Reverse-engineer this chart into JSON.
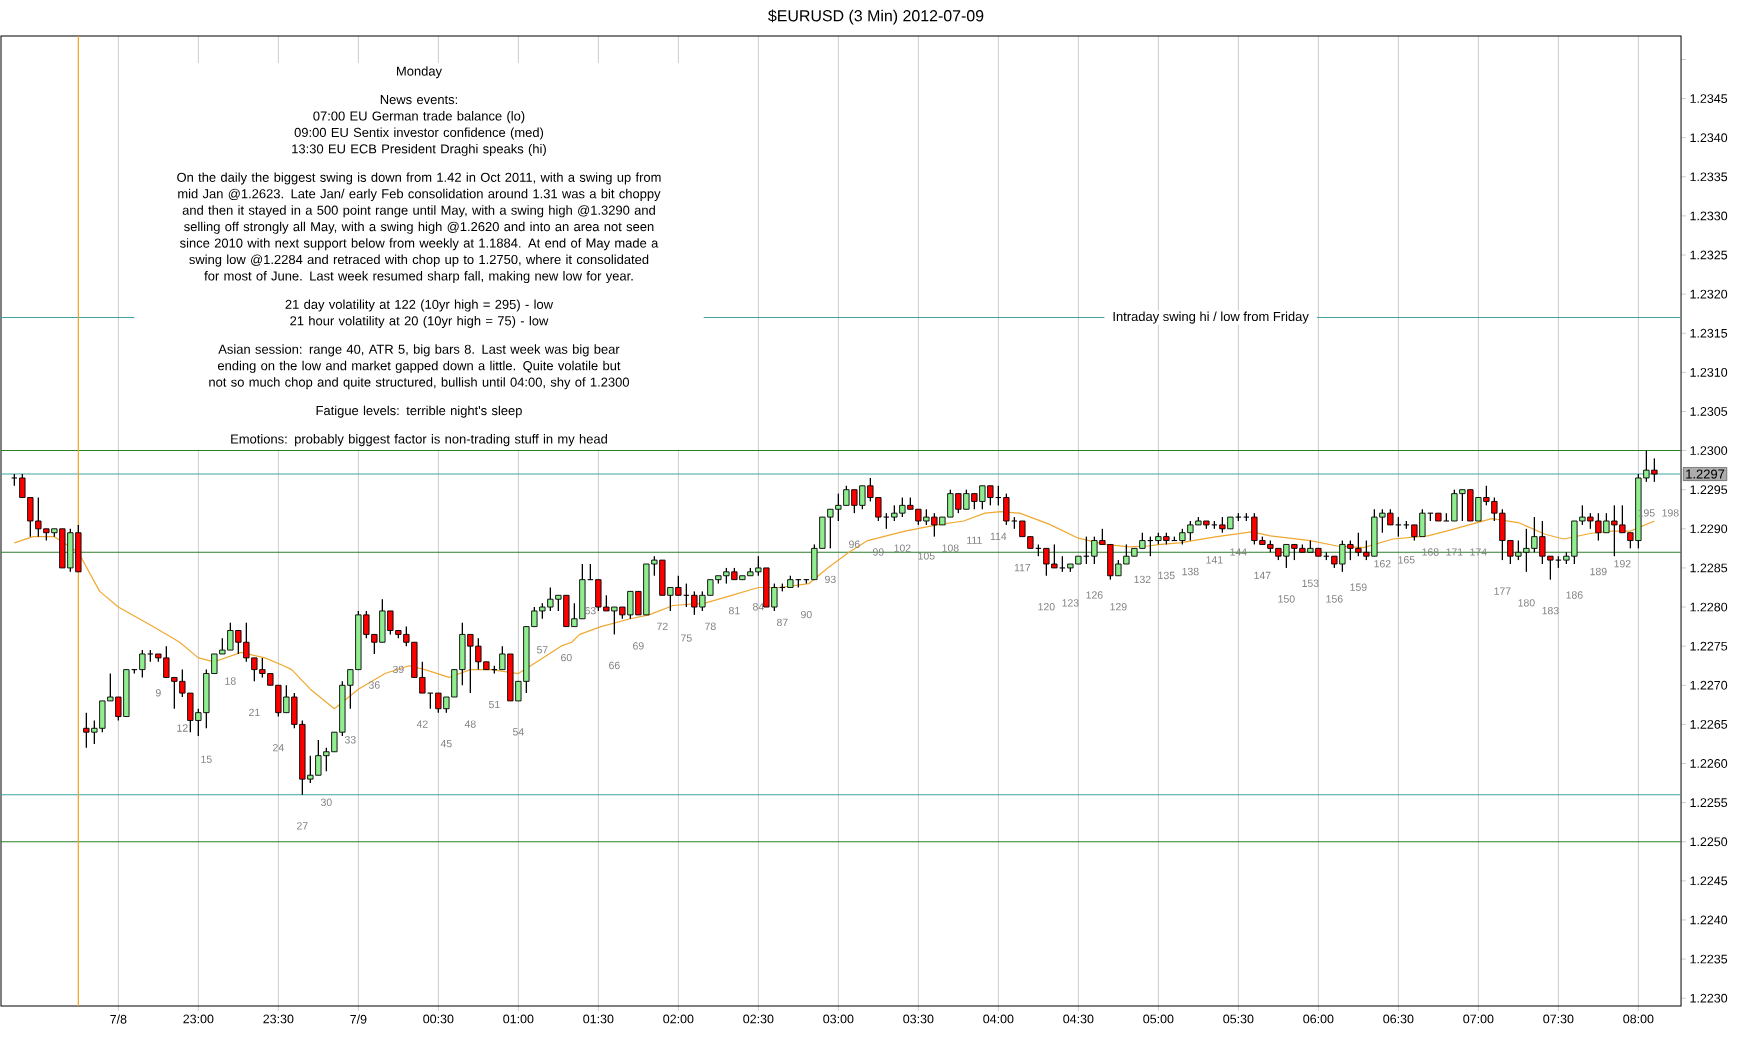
{
  "chart_data": {
    "type": "candlestick",
    "title": "$EURUSD (3 Min)  2012-07-09",
    "x": [
      "2012-07-08T21:51",
      "2012-07-08T21:54",
      "2012-07-08T21:57",
      "2012-07-08T22:00",
      "2012-07-08T22:03",
      "2012-07-08T22:06",
      "2012-07-08T22:09",
      "2012-07-08T22:12",
      "2012-07-08T22:15",
      "2012-07-08T22:18",
      "2012-07-08T22:21",
      "2012-07-08T22:24",
      "2012-07-08T22:27",
      "2012-07-08T22:30",
      "2012-07-08T22:33",
      "2012-07-08T22:36",
      "2012-07-08T22:39",
      "2012-07-08T22:42",
      "2012-07-08T22:45",
      "2012-07-08T22:48",
      "2012-07-08T22:51",
      "2012-07-08T22:54",
      "2012-07-08T22:57",
      "2012-07-08T23:00",
      "2012-07-08T23:03",
      "2012-07-08T23:06",
      "2012-07-08T23:09",
      "2012-07-08T23:12",
      "2012-07-08T23:15",
      "2012-07-08T23:18",
      "2012-07-08T23:21",
      "2012-07-08T23:24",
      "2012-07-08T23:27",
      "2012-07-08T23:30",
      "2012-07-08T23:33",
      "2012-07-08T23:36",
      "2012-07-08T23:39",
      "2012-07-08T23:42",
      "2012-07-08T23:45",
      "2012-07-08T23:48",
      "2012-07-08T23:51",
      "2012-07-08T23:54",
      "2012-07-08T23:57",
      "2012-07-09T00:00",
      "2012-07-09T00:03",
      "2012-07-09T00:06",
      "2012-07-09T00:09",
      "2012-07-09T00:12",
      "2012-07-09T00:15",
      "2012-07-09T00:18",
      "2012-07-09T00:21",
      "2012-07-09T00:24",
      "2012-07-09T00:27",
      "2012-07-09T00:30",
      "2012-07-09T00:33",
      "2012-07-09T00:36",
      "2012-07-09T00:39",
      "2012-07-09T00:42",
      "2012-07-09T00:45",
      "2012-07-09T00:48",
      "2012-07-09T00:51",
      "2012-07-09T00:54",
      "2012-07-09T00:57",
      "2012-07-09T01:00",
      "2012-07-09T01:03",
      "2012-07-09T01:06",
      "2012-07-09T01:09",
      "2012-07-09T01:12",
      "2012-07-09T01:15",
      "2012-07-09T01:18",
      "2012-07-09T01:21",
      "2012-07-09T01:24",
      "2012-07-09T01:27",
      "2012-07-09T01:30",
      "2012-07-09T01:33",
      "2012-07-09T01:36",
      "2012-07-09T01:39",
      "2012-07-09T01:42",
      "2012-07-09T01:45",
      "2012-07-09T01:48",
      "2012-07-09T01:51",
      "2012-07-09T01:54",
      "2012-07-09T01:57",
      "2012-07-09T02:00",
      "2012-07-09T02:03",
      "2012-07-09T02:06",
      "2012-07-09T02:09",
      "2012-07-09T02:12",
      "2012-07-09T02:15",
      "2012-07-09T02:18",
      "2012-07-09T02:21",
      "2012-07-09T02:24",
      "2012-07-09T02:27",
      "2012-07-09T02:30",
      "2012-07-09T02:33",
      "2012-07-09T02:36",
      "2012-07-09T02:39",
      "2012-07-09T02:42",
      "2012-07-09T02:45",
      "2012-07-09T02:48",
      "2012-07-09T02:51",
      "2012-07-09T02:54",
      "2012-07-09T02:57",
      "2012-07-09T03:00",
      "2012-07-09T03:03",
      "2012-07-09T03:06",
      "2012-07-09T03:09",
      "2012-07-09T03:12",
      "2012-07-09T03:15",
      "2012-07-09T03:18",
      "2012-07-09T03:21",
      "2012-07-09T03:24",
      "2012-07-09T03:27",
      "2012-07-09T03:30",
      "2012-07-09T03:33",
      "2012-07-09T03:36",
      "2012-07-09T03:39",
      "2012-07-09T03:42",
      "2012-07-09T03:45",
      "2012-07-09T03:48",
      "2012-07-09T03:51",
      "2012-07-09T03:54",
      "2012-07-09T03:57",
      "2012-07-09T04:00",
      "2012-07-09T04:03",
      "2012-07-09T04:06",
      "2012-07-09T04:09",
      "2012-07-09T04:12",
      "2012-07-09T04:15",
      "2012-07-09T04:18",
      "2012-07-09T04:21",
      "2012-07-09T04:24",
      "2012-07-09T04:27",
      "2012-07-09T04:30",
      "2012-07-09T04:33",
      "2012-07-09T04:36",
      "2012-07-09T04:39",
      "2012-07-09T04:42",
      "2012-07-09T04:45",
      "2012-07-09T04:48",
      "2012-07-09T04:51",
      "2012-07-09T04:54",
      "2012-07-09T04:57",
      "2012-07-09T05:00",
      "2012-07-09T05:03",
      "2012-07-09T05:06",
      "2012-07-09T05:09",
      "2012-07-09T05:12",
      "2012-07-09T05:15",
      "2012-07-09T05:18",
      "2012-07-09T05:21",
      "2012-07-09T05:24",
      "2012-07-09T05:27",
      "2012-07-09T05:30",
      "2012-07-09T05:33",
      "2012-07-09T05:36",
      "2012-07-09T05:39",
      "2012-07-09T05:42",
      "2012-07-09T05:45",
      "2012-07-09T05:48",
      "2012-07-09T05:51",
      "2012-07-09T05:54",
      "2012-07-09T05:57",
      "2012-07-09T06:00",
      "2012-07-09T06:03",
      "2012-07-09T06:06",
      "2012-07-09T06:09",
      "2012-07-09T06:12",
      "2012-07-09T06:15",
      "2012-07-09T06:18",
      "2012-07-09T06:21",
      "2012-07-09T06:24",
      "2012-07-09T06:27",
      "2012-07-09T06:30",
      "2012-07-09T06:33",
      "2012-07-09T06:36",
      "2012-07-09T06:39",
      "2012-07-09T06:42",
      "2012-07-09T06:45",
      "2012-07-09T06:48",
      "2012-07-09T06:51",
      "2012-07-09T06:54",
      "2012-07-09T06:57",
      "2012-07-09T07:00",
      "2012-07-09T07:03",
      "2012-07-09T07:06",
      "2012-07-09T07:09",
      "2012-07-09T07:12",
      "2012-07-09T07:15",
      "2012-07-09T07:18",
      "2012-07-09T07:21",
      "2012-07-09T07:24",
      "2012-07-09T07:27",
      "2012-07-09T07:30",
      "2012-07-09T07:33",
      "2012-07-09T07:36",
      "2012-07-09T07:39",
      "2012-07-09T07:42",
      "2012-07-09T07:45",
      "2012-07-09T07:48",
      "2012-07-09T07:51",
      "2012-07-09T07:54",
      "2012-07-09T07:57",
      "2012-07-09T08:00",
      "2012-07-09T08:03",
      "2012-07-09T08:06"
    ],
    "ohlc": [
      [
        1.22965,
        1.2297,
        1.22955,
        1.22965
      ],
      [
        1.22965,
        1.2297,
        1.2294,
        1.2294
      ],
      [
        1.2294,
        1.2294,
        1.2289,
        1.2291
      ],
      [
        1.2291,
        1.2294,
        1.2289,
        1.229
      ],
      [
        1.229,
        1.229,
        1.22885,
        1.22895
      ],
      [
        1.22895,
        1.229,
        1.2289,
        1.229
      ],
      [
        1.229,
        1.229,
        1.2285,
        1.2285
      ],
      [
        1.2285,
        1.229,
        1.22845,
        1.22895
      ],
      [
        1.22895,
        1.22905,
        1.22845,
        1.22845
      ],
      [
        1.22645,
        1.22665,
        1.2262,
        1.2264
      ],
      [
        1.2264,
        1.22655,
        1.22625,
        1.22645
      ],
      [
        1.22645,
        1.2268,
        1.2264,
        1.2268
      ],
      [
        1.2268,
        1.22715,
        1.2268,
        1.22685
      ],
      [
        1.22685,
        1.22685,
        1.22655,
        1.2266
      ],
      [
        1.2266,
        1.2272,
        1.2266,
        1.2272
      ],
      [
        1.2272,
        1.2272,
        1.22715,
        1.2272
      ],
      [
        1.2272,
        1.22745,
        1.2271,
        1.2274
      ],
      [
        1.2274,
        1.22745,
        1.2273,
        1.2274
      ],
      [
        1.2274,
        1.2274,
        1.2273,
        1.22735
      ],
      [
        1.22735,
        1.2275,
        1.2271,
        1.2271
      ],
      [
        1.2271,
        1.2271,
        1.2267,
        1.22705
      ],
      [
        1.22705,
        1.2272,
        1.22685,
        1.2269
      ],
      [
        1.2269,
        1.2269,
        1.2264,
        1.22655
      ],
      [
        1.22655,
        1.2267,
        1.22635,
        1.22665
      ],
      [
        1.22665,
        1.2272,
        1.22645,
        1.22715
      ],
      [
        1.22715,
        1.2274,
        1.22715,
        1.2274
      ],
      [
        1.2274,
        1.2276,
        1.2274,
        1.22745
      ],
      [
        1.22745,
        1.2278,
        1.22745,
        1.2277
      ],
      [
        1.2277,
        1.2277,
        1.2274,
        1.22755
      ],
      [
        1.22755,
        1.2278,
        1.2273,
        1.22735
      ],
      [
        1.22735,
        1.22735,
        1.22705,
        1.2272
      ],
      [
        1.2272,
        1.22735,
        1.2271,
        1.22715
      ],
      [
        1.22715,
        1.22715,
        1.227,
        1.227
      ],
      [
        1.227,
        1.227,
        1.2266,
        1.22665
      ],
      [
        1.22665,
        1.227,
        1.22665,
        1.22685
      ],
      [
        1.22685,
        1.2269,
        1.22645,
        1.2265
      ],
      [
        1.2265,
        1.22655,
        1.2256,
        1.2258
      ],
      [
        1.2258,
        1.2261,
        1.22575,
        1.22585
      ],
      [
        1.22585,
        1.2263,
        1.22585,
        1.2261
      ],
      [
        1.2261,
        1.2262,
        1.2259,
        1.22615
      ],
      [
        1.22615,
        1.2264,
        1.22615,
        1.2264
      ],
      [
        1.2264,
        1.22705,
        1.22635,
        1.227
      ],
      [
        1.227,
        1.2272,
        1.2267,
        1.2272
      ],
      [
        1.2272,
        1.22795,
        1.2272,
        1.2279
      ],
      [
        1.2279,
        1.22795,
        1.2276,
        1.22765
      ],
      [
        1.22765,
        1.22765,
        1.2274,
        1.22755
      ],
      [
        1.22755,
        1.2281,
        1.22755,
        1.22795
      ],
      [
        1.22795,
        1.22795,
        1.22765,
        1.2277
      ],
      [
        1.2277,
        1.2277,
        1.2276,
        1.22765
      ],
      [
        1.22765,
        1.22775,
        1.2275,
        1.22755
      ],
      [
        1.22755,
        1.22755,
        1.2271,
        1.2271
      ],
      [
        1.2271,
        1.2273,
        1.2269,
        1.2269
      ],
      [
        1.2269,
        1.2269,
        1.2267,
        1.2269
      ],
      [
        1.2269,
        1.2269,
        1.22665,
        1.2267
      ],
      [
        1.2267,
        1.22685,
        1.22665,
        1.22685
      ],
      [
        1.22685,
        1.2272,
        1.22685,
        1.2272
      ],
      [
        1.2272,
        1.2278,
        1.227,
        1.22765
      ],
      [
        1.22765,
        1.22765,
        1.2269,
        1.2275
      ],
      [
        1.2275,
        1.2276,
        1.2272,
        1.2273
      ],
      [
        1.2273,
        1.2273,
        1.2272,
        1.2272
      ],
      [
        1.2272,
        1.22725,
        1.22715,
        1.2272
      ],
      [
        1.2272,
        1.2275,
        1.2272,
        1.2274
      ],
      [
        1.2274,
        1.2274,
        1.2268,
        1.2268
      ],
      [
        1.2268,
        1.22705,
        1.2268,
        1.22705
      ],
      [
        1.22705,
        1.22775,
        1.2269,
        1.22775
      ],
      [
        1.22775,
        1.228,
        1.22775,
        1.22795
      ],
      [
        1.22795,
        1.22805,
        1.22785,
        1.228
      ],
      [
        1.228,
        1.22825,
        1.22795,
        1.2281
      ],
      [
        1.2281,
        1.22815,
        1.22795,
        1.22815
      ],
      [
        1.22815,
        1.22815,
        1.22775,
        1.22775
      ],
      [
        1.22775,
        1.22805,
        1.22775,
        1.22785
      ],
      [
        1.22785,
        1.22855,
        1.22785,
        1.22835
      ],
      [
        1.22835,
        1.22855,
        1.22835,
        1.22835
      ],
      [
        1.22835,
        1.22835,
        1.22795,
        1.228
      ],
      [
        1.228,
        1.22815,
        1.22795,
        1.22795
      ],
      [
        1.22795,
        1.228,
        1.22765,
        1.228
      ],
      [
        1.228,
        1.228,
        1.22785,
        1.2279
      ],
      [
        1.2279,
        1.2282,
        1.22785,
        1.2282
      ],
      [
        1.2282,
        1.2282,
        1.2279,
        1.2279
      ],
      [
        1.2279,
        1.22855,
        1.2279,
        1.22855
      ],
      [
        1.22855,
        1.22865,
        1.2284,
        1.2286
      ],
      [
        1.2286,
        1.2286,
        1.22815,
        1.22815
      ],
      [
        1.22815,
        1.22825,
        1.22795,
        1.22825
      ],
      [
        1.22825,
        1.2284,
        1.22815,
        1.22815
      ],
      [
        1.22815,
        1.2283,
        1.228,
        1.22815
      ],
      [
        1.22815,
        1.2282,
        1.2279,
        1.228
      ],
      [
        1.228,
        1.2282,
        1.22795,
        1.22815
      ],
      [
        1.22815,
        1.22835,
        1.22815,
        1.22835
      ],
      [
        1.22835,
        1.2284,
        1.2283,
        1.2284
      ],
      [
        1.2284,
        1.2285,
        1.2283,
        1.22845
      ],
      [
        1.22845,
        1.2285,
        1.22835,
        1.22835
      ],
      [
        1.22835,
        1.2284,
        1.22835,
        1.2284
      ],
      [
        1.2284,
        1.2285,
        1.2284,
        1.22845
      ],
      [
        1.22845,
        1.22865,
        1.2284,
        1.2285
      ],
      [
        1.2285,
        1.2285,
        1.228,
        1.228
      ],
      [
        1.228,
        1.2283,
        1.22795,
        1.22825
      ],
      [
        1.22825,
        1.2283,
        1.2282,
        1.22825
      ],
      [
        1.22825,
        1.2284,
        1.22825,
        1.22835
      ],
      [
        1.22835,
        1.22835,
        1.22825,
        1.22835
      ],
      [
        1.22835,
        1.22835,
        1.2283,
        1.22835
      ],
      [
        1.22835,
        1.2288,
        1.22835,
        1.22875
      ],
      [
        1.22875,
        1.22915,
        1.22875,
        1.22915
      ],
      [
        1.22915,
        1.22925,
        1.22875,
        1.22925
      ],
      [
        1.22925,
        1.22945,
        1.2291,
        1.2293
      ],
      [
        1.2293,
        1.22955,
        1.2293,
        1.2295
      ],
      [
        1.2295,
        1.2295,
        1.2292,
        1.2293
      ],
      [
        1.2293,
        1.22955,
        1.22925,
        1.22955
      ],
      [
        1.22955,
        1.22965,
        1.22935,
        1.2294
      ],
      [
        1.2294,
        1.2294,
        1.2291,
        1.22915
      ],
      [
        1.22915,
        1.2292,
        1.229,
        1.22915
      ],
      [
        1.22915,
        1.2293,
        1.2291,
        1.2292
      ],
      [
        1.2292,
        1.2294,
        1.22915,
        1.2293
      ],
      [
        1.2293,
        1.2294,
        1.22925,
        1.22925
      ],
      [
        1.22925,
        1.22925,
        1.22905,
        1.2291
      ],
      [
        1.2291,
        1.22925,
        1.22905,
        1.22915
      ],
      [
        1.22915,
        1.2292,
        1.2289,
        1.22905
      ],
      [
        1.22905,
        1.22915,
        1.22905,
        1.22915
      ],
      [
        1.22915,
        1.2295,
        1.22915,
        1.22945
      ],
      [
        1.22945,
        1.22945,
        1.2292,
        1.22925
      ],
      [
        1.22925,
        1.2295,
        1.22925,
        1.22945
      ],
      [
        1.22945,
        1.22945,
        1.22925,
        1.22935
      ],
      [
        1.22935,
        1.22955,
        1.22925,
        1.22955
      ],
      [
        1.22955,
        1.22955,
        1.2293,
        1.2294
      ],
      [
        1.2294,
        1.22955,
        1.2293,
        1.2294
      ],
      [
        1.2294,
        1.22945,
        1.22905,
        1.2291
      ],
      [
        1.2291,
        1.22915,
        1.229,
        1.2291
      ],
      [
        1.2291,
        1.2291,
        1.2289,
        1.2289
      ],
      [
        1.2289,
        1.2289,
        1.22875,
        1.22875
      ],
      [
        1.22875,
        1.2288,
        1.22865,
        1.22875
      ],
      [
        1.22875,
        1.22875,
        1.2284,
        1.22855
      ],
      [
        1.22855,
        1.2288,
        1.2285,
        1.2285
      ],
      [
        1.2285,
        1.22865,
        1.22845,
        1.2285
      ],
      [
        1.2285,
        1.22855,
        1.22845,
        1.22855
      ],
      [
        1.22855,
        1.22865,
        1.22855,
        1.22865
      ],
      [
        1.22865,
        1.2289,
        1.22855,
        1.22865
      ],
      [
        1.22865,
        1.2289,
        1.22855,
        1.22885
      ],
      [
        1.22885,
        1.229,
        1.2288,
        1.2288
      ],
      [
        1.2288,
        1.2288,
        1.22835,
        1.2284
      ],
      [
        1.2284,
        1.2286,
        1.2284,
        1.22855
      ],
      [
        1.22855,
        1.2288,
        1.22855,
        1.22865
      ],
      [
        1.22865,
        1.22875,
        1.22865,
        1.22875
      ],
      [
        1.22875,
        1.22895,
        1.22875,
        1.22885
      ],
      [
        1.22885,
        1.2289,
        1.22865,
        1.22885
      ],
      [
        1.22885,
        1.22895,
        1.2288,
        1.2289
      ],
      [
        1.2289,
        1.22895,
        1.2288,
        1.22885
      ],
      [
        1.22885,
        1.2289,
        1.22885,
        1.22885
      ],
      [
        1.22885,
        1.229,
        1.2288,
        1.22895
      ],
      [
        1.22895,
        1.2291,
        1.22885,
        1.22905
      ],
      [
        1.22905,
        1.22915,
        1.22905,
        1.2291
      ],
      [
        1.2291,
        1.2291,
        1.229,
        1.22905
      ],
      [
        1.22905,
        1.2291,
        1.229,
        1.22905
      ],
      [
        1.22905,
        1.22915,
        1.22895,
        1.229
      ],
      [
        1.229,
        1.22915,
        1.229,
        1.22915
      ],
      [
        1.22915,
        1.2292,
        1.2291,
        1.22915
      ],
      [
        1.22915,
        1.2292,
        1.2291,
        1.22915
      ],
      [
        1.22915,
        1.2292,
        1.2288,
        1.22885
      ],
      [
        1.22885,
        1.2289,
        1.2288,
        1.2288
      ],
      [
        1.2288,
        1.22885,
        1.2287,
        1.22875
      ],
      [
        1.22875,
        1.22875,
        1.2286,
        1.22865
      ],
      [
        1.22865,
        1.2288,
        1.2285,
        1.2288
      ],
      [
        1.2288,
        1.2288,
        1.2286,
        1.22875
      ],
      [
        1.22875,
        1.2288,
        1.2287,
        1.2287
      ],
      [
        1.2287,
        1.22885,
        1.2287,
        1.22875
      ],
      [
        1.22875,
        1.22875,
        1.22865,
        1.22865
      ],
      [
        1.22865,
        1.2287,
        1.2286,
        1.22865
      ],
      [
        1.22865,
        1.22865,
        1.2285,
        1.22855
      ],
      [
        1.22855,
        1.22885,
        1.22845,
        1.2288
      ],
      [
        1.2288,
        1.22885,
        1.2286,
        1.22875
      ],
      [
        1.22875,
        1.22895,
        1.22865,
        1.2287
      ],
      [
        1.2287,
        1.22885,
        1.2286,
        1.22865
      ],
      [
        1.22865,
        1.22925,
        1.22865,
        1.22915
      ],
      [
        1.22915,
        1.22925,
        1.22895,
        1.2292
      ],
      [
        1.2292,
        1.22925,
        1.22905,
        1.22905
      ],
      [
        1.22905,
        1.22915,
        1.2289,
        1.22905
      ],
      [
        1.22905,
        1.2291,
        1.229,
        1.22905
      ],
      [
        1.22905,
        1.22905,
        1.22885,
        1.2289
      ],
      [
        1.2289,
        1.22925,
        1.2289,
        1.2292
      ],
      [
        1.2292,
        1.2292,
        1.2291,
        1.2292
      ],
      [
        1.2292,
        1.2292,
        1.2291,
        1.2291
      ],
      [
        1.2291,
        1.2292,
        1.2291,
        1.2291
      ],
      [
        1.2291,
        1.2295,
        1.2291,
        1.22945
      ],
      [
        1.22945,
        1.2295,
        1.2291,
        1.2295
      ],
      [
        1.2295,
        1.2295,
        1.2291,
        1.2291
      ],
      [
        1.2291,
        1.2294,
        1.2291,
        1.2294
      ],
      [
        1.2294,
        1.22955,
        1.2293,
        1.22935
      ],
      [
        1.22935,
        1.2294,
        1.2291,
        1.2292
      ],
      [
        1.2292,
        1.22925,
        1.2286,
        1.22885
      ],
      [
        1.22885,
        1.22885,
        1.22855,
        1.22865
      ],
      [
        1.22865,
        1.22885,
        1.2286,
        1.2287
      ],
      [
        1.2287,
        1.229,
        1.22845,
        1.22875
      ],
      [
        1.22875,
        1.22915,
        1.2287,
        1.2289
      ],
      [
        1.2289,
        1.2291,
        1.22855,
        1.22865
      ],
      [
        1.22865,
        1.22865,
        1.22835,
        1.2286
      ],
      [
        1.2286,
        1.22865,
        1.2285,
        1.2286
      ],
      [
        1.2286,
        1.2287,
        1.22855,
        1.22865
      ],
      [
        1.22865,
        1.2291,
        1.22855,
        1.2291
      ],
      [
        1.2291,
        1.2293,
        1.22905,
        1.22915
      ],
      [
        1.22915,
        1.2292,
        1.229,
        1.2291
      ],
      [
        1.2291,
        1.2292,
        1.22885,
        1.22895
      ],
      [
        1.22895,
        1.2292,
        1.22895,
        1.2291
      ],
      [
        1.2291,
        1.2293,
        1.22865,
        1.22905
      ],
      [
        1.22905,
        1.2293,
        1.22895,
        1.22895
      ],
      [
        1.22895,
        1.22895,
        1.22875,
        1.22885
      ],
      [
        1.22885,
        1.2297,
        1.22875,
        1.22965
      ],
      [
        1.22965,
        1.23,
        1.2296,
        1.22975
      ],
      [
        1.22975,
        1.2299,
        1.2296,
        1.2297
      ]
    ],
    "colors": [
      "#000000",
      "#ff0000",
      "#ff0000",
      "#ff0000",
      "#ff0000",
      "#90ee90",
      "#ff0000",
      "#90ee90",
      "#ff0000",
      "#ff0000",
      "#90ee90",
      "#90ee90",
      "#90ee90",
      "#ff0000",
      "#90ee90",
      "#000000",
      "#90ee90",
      "#000000",
      "#ff0000",
      "#ff0000",
      "#ff0000",
      "#ff0000",
      "#ff0000",
      "#90ee90",
      "#90ee90",
      "#90ee90",
      "#90ee90",
      "#90ee90",
      "#ff0000",
      "#ff0000",
      "#ff0000",
      "#ff0000",
      "#ff0000",
      "#ff0000",
      "#90ee90",
      "#ff0000",
      "#ff0000",
      "#90ee90",
      "#90ee90",
      "#90ee90",
      "#90ee90",
      "#90ee90",
      "#90ee90",
      "#90ee90",
      "#ff0000",
      "#ff0000",
      "#90ee90",
      "#ff0000",
      "#ff0000",
      "#ff0000",
      "#ff0000",
      "#ff0000",
      "#000000",
      "#ff0000",
      "#90ee90",
      "#90ee90",
      "#90ee90",
      "#ff0000",
      "#ff0000",
      "#ff0000",
      "#000000",
      "#90ee90",
      "#ff0000",
      "#90ee90",
      "#90ee90",
      "#90ee90",
      "#90ee90",
      "#90ee90",
      "#90ee90",
      "#ff0000",
      "#90ee90",
      "#90ee90",
      "#000000",
      "#ff0000",
      "#ff0000",
      "#90ee90",
      "#ff0000",
      "#90ee90",
      "#ff0000",
      "#90ee90",
      "#90ee90",
      "#ff0000",
      "#90ee90",
      "#ff0000",
      "#000000",
      "#ff0000",
      "#90ee90",
      "#90ee90",
      "#90ee90",
      "#90ee90",
      "#ff0000",
      "#90ee90",
      "#90ee90",
      "#90ee90",
      "#ff0000",
      "#90ee90",
      "#000000",
      "#90ee90",
      "#000000",
      "#000000",
      "#90ee90",
      "#90ee90",
      "#90ee90",
      "#90ee90",
      "#90ee90",
      "#ff0000",
      "#90ee90",
      "#ff0000",
      "#ff0000",
      "#000000",
      "#90ee90",
      "#90ee90",
      "#ff0000",
      "#ff0000",
      "#90ee90",
      "#ff0000",
      "#90ee90",
      "#90ee90",
      "#ff0000",
      "#90ee90",
      "#ff0000",
      "#90ee90",
      "#ff0000",
      "#000000",
      "#ff0000",
      "#000000",
      "#ff0000",
      "#ff0000",
      "#000000",
      "#ff0000",
      "#ff0000",
      "#000000",
      "#90ee90",
      "#90ee90",
      "#000000",
      "#90ee90",
      "#ff0000",
      "#ff0000",
      "#90ee90",
      "#90ee90",
      "#90ee90",
      "#90ee90",
      "#000000",
      "#90ee90",
      "#ff0000",
      "#000000",
      "#90ee90",
      "#90ee90",
      "#90ee90",
      "#ff0000",
      "#000000",
      "#ff0000",
      "#90ee90",
      "#000000",
      "#000000",
      "#ff0000",
      "#ff0000",
      "#ff0000",
      "#ff0000",
      "#90ee90",
      "#ff0000",
      "#ff0000",
      "#90ee90",
      "#ff0000",
      "#000000",
      "#ff0000",
      "#90ee90",
      "#ff0000",
      "#ff0000",
      "#ff0000",
      "#90ee90",
      "#90ee90",
      "#ff0000",
      "#000000",
      "#000000",
      "#ff0000",
      "#90ee90",
      "#000000",
      "#ff0000",
      "#000000",
      "#90ee90",
      "#90ee90",
      "#ff0000",
      "#90ee90",
      "#ff0000",
      "#ff0000",
      "#ff0000",
      "#ff0000",
      "#90ee90",
      "#90ee90",
      "#90ee90",
      "#ff0000",
      "#ff0000",
      "#000000",
      "#90ee90",
      "#90ee90",
      "#90ee90",
      "#ff0000",
      "#ff0000",
      "#90ee90",
      "#ff0000",
      "#ff0000",
      "#ff0000",
      "#90ee90",
      "#90ee90",
      "#ff0000"
    ],
    "series": [
      {
        "type": "line",
        "color": "#f0a830",
        "x": [
          "2012-07-08T21:51",
          "2012-07-08T21:58",
          "2012-07-08T22:06",
          "2012-07-08T22:15",
          "2012-07-08T22:23",
          "2012-07-08T22:30",
          "2012-07-08T22:43",
          "2012-07-08T22:53",
          "2012-07-08T23:00",
          "2012-07-08T23:06",
          "2012-07-08T23:16",
          "2012-07-08T23:25",
          "2012-07-08T23:32",
          "2012-07-08T23:35",
          "2012-07-08T23:42",
          "2012-07-08T23:51",
          "2012-07-09T00:00",
          "2012-07-09T00:10",
          "2012-07-09T00:19",
          "2012-07-09T00:25",
          "2012-07-09T00:34",
          "2012-07-09T00:42",
          "2012-07-09T00:50",
          "2012-07-09T01:00",
          "2012-07-09T01:07",
          "2012-07-09T01:16",
          "2012-07-09T01:20",
          "2012-07-09T01:23",
          "2012-07-09T01:31",
          "2012-07-09T01:42",
          "2012-07-09T01:49",
          "2012-07-09T01:58",
          "2012-07-09T02:10",
          "2012-07-09T02:20",
          "2012-07-09T02:30",
          "2012-07-09T02:38",
          "2012-07-09T02:49",
          "2012-07-09T02:56",
          "2012-07-09T03:04",
          "2012-07-09T03:11",
          "2012-07-09T03:25",
          "2012-07-09T03:37",
          "2012-07-09T03:47",
          "2012-07-09T03:55",
          "2012-07-09T04:01",
          "2012-07-09T04:08",
          "2012-07-09T04:19",
          "2012-07-09T04:30",
          "2012-07-09T04:40",
          "2012-07-09T04:49",
          "2012-07-09T04:56",
          "2012-07-09T05:01",
          "2012-07-09T05:08",
          "2012-07-09T05:22",
          "2012-07-09T05:35",
          "2012-07-09T05:42",
          "2012-07-09T05:57",
          "2012-07-09T06:07",
          "2012-07-09T06:17",
          "2012-07-09T06:28",
          "2012-07-09T06:41",
          "2012-07-09T06:48",
          "2012-07-09T07:05",
          "2012-07-09T07:15",
          "2012-07-09T07:25",
          "2012-07-09T07:32",
          "2012-07-09T07:42",
          "2012-07-09T07:50",
          "2012-07-09T07:57",
          "2012-07-09T08:06"
        ],
        "values": [
          1.22882,
          1.2289,
          1.2289,
          1.2287,
          1.2282,
          1.228,
          1.22775,
          1.22755,
          1.22735,
          1.2273,
          1.22742,
          1.22735,
          1.22725,
          1.2272,
          1.22695,
          1.2267,
          1.22695,
          1.22715,
          1.22725,
          1.2272,
          1.2271,
          1.2272,
          1.2272,
          1.22715,
          1.2273,
          1.2275,
          1.22755,
          1.22765,
          1.22775,
          1.22785,
          1.2279,
          1.22802,
          1.22805,
          1.22815,
          1.22825,
          1.22825,
          1.2283,
          1.2285,
          1.2287,
          1.22885,
          1.22897,
          1.22905,
          1.2291,
          1.2292,
          1.22922,
          1.2292,
          1.22906,
          1.22888,
          1.2288,
          1.22877,
          1.22878,
          1.2288,
          1.22882,
          1.2289,
          1.22896,
          1.22891,
          1.22885,
          1.22878,
          1.22876,
          1.22887,
          1.22891,
          1.22897,
          1.22913,
          1.22908,
          1.22893,
          1.22887,
          1.22894,
          1.22897,
          1.22897,
          1.2291
        ]
      }
    ],
    "xlim": [
      "2012-07-08T21:46",
      "2012-07-09T08:16"
    ],
    "ylim": [
      1.2229,
      1.2353
    ],
    "xticks": [
      {
        "value": "2012-07-08T22:30",
        "label": "7/8"
      },
      {
        "value": "2012-07-08T23:00",
        "label": "23:00"
      },
      {
        "value": "2012-07-08T23:30",
        "label": "23:30"
      },
      {
        "value": "2012-07-09T00:00",
        "label": "7/9"
      },
      {
        "value": "2012-07-09T00:30",
        "label": "00:30"
      },
      {
        "value": "2012-07-09T01:00",
        "label": "01:00"
      },
      {
        "value": "2012-07-09T01:30",
        "label": "01:30"
      },
      {
        "value": "2012-07-09T02:00",
        "label": "02:00"
      },
      {
        "value": "2012-07-09T02:30",
        "label": "02:30"
      },
      {
        "value": "2012-07-09T03:00",
        "label": "03:00"
      },
      {
        "value": "2012-07-09T03:30",
        "label": "03:30"
      },
      {
        "value": "2012-07-09T04:00",
        "label": "04:00"
      },
      {
        "value": "2012-07-09T04:30",
        "label": "04:30"
      },
      {
        "value": "2012-07-09T05:00",
        "label": "05:00"
      },
      {
        "value": "2012-07-09T05:30",
        "label": "05:30"
      },
      {
        "value": "2012-07-09T06:00",
        "label": "06:00"
      },
      {
        "value": "2012-07-09T06:30",
        "label": "06:30"
      },
      {
        "value": "2012-07-09T07:00",
        "label": "07:00"
      },
      {
        "value": "2012-07-09T07:30",
        "label": "07:30"
      },
      {
        "value": "2012-07-09T08:00",
        "label": "08:00"
      }
    ],
    "yticks": [
      {
        "value": 1.223,
        "label": "1.2230"
      },
      1.2235,
      {
        "value": 1.224,
        "label": "1.2240"
      },
      1.2245,
      {
        "value": 1.225,
        "label": "1.2250"
      },
      1.2255,
      {
        "value": 1.226,
        "label": "1.2260"
      },
      1.2265,
      {
        "value": 1.227,
        "label": "1.2270"
      },
      1.2275,
      {
        "value": 1.228,
        "label": "1.2280"
      },
      1.2285,
      {
        "value": 1.229,
        "label": "1.2290"
      },
      1.2295,
      {
        "value": 1.23,
        "label": "1.2300"
      },
      1.2305,
      {
        "value": 1.231,
        "label": "1.2310"
      },
      1.2315,
      {
        "value": 1.232,
        "label": "1.2320"
      },
      1.2325,
      {
        "value": 1.233,
        "label": "1.2330"
      },
      1.2335,
      {
        "value": 1.234,
        "label": "1.2340"
      },
      1.2345,
      {
        "value": 1.235,
        "label": null
      }
    ],
    "grid": "x",
    "ref_lines": [
      {
        "axis": "y",
        "value": 1.2317,
        "label": "Intraday swing hi / low from Friday",
        "color": "#3fa3a3"
      },
      {
        "axis": "y",
        "value": 1.23,
        "color": "#2a7f2a"
      },
      {
        "axis": "y",
        "value": 1.2297,
        "color": "#3fa3a3"
      },
      {
        "axis": "y",
        "value": 1.2287,
        "color": "#2a7f2a"
      },
      {
        "axis": "y",
        "value": 1.2256,
        "color": "#3fa3a3"
      },
      {
        "axis": "y",
        "value": 1.225,
        "color": "#2a7f2a"
      },
      {
        "axis": "x",
        "value": "2012-07-08T22:15",
        "color": "#f0a020"
      }
    ],
    "annotations": [
      "Monday",
      "News events:",
      "07:00 EU German trade balance (lo)",
      "09:00 EU Sentix investor confidence (med)",
      "13:30 EU ECB President Draghi speaks (hi)",
      "On the daily the biggest swing is down from 1.42 in Oct 2011, with a swing up from mid Jan @1.2623. Late Jan/ early Feb consolidation around 1.31 was a bit choppy and then it stayed in a 500 point range until May, with a swing high @1.3290 and selling off strongly all May, with a swing high @1.2620 and into an area not seen since 2010 with next support below from weekly at 1.1884. At end of May made a swing low @1.2284 and retraced with chop up to 1.2750, where it consolidated for most of June. Last week resumed sharp fall, making new low for year.",
      "21 day volatility at 122 (10yr high = 295) - low",
      "21 hour volatility at 20 (10yr high = 75) - low",
      "Asian session: range 40, ATR 5, big bars 8. Last week was big bear ending on the low and market gapped down a little. Quite volatile but not so much chop and quite structured, bullish until 04:00, shy of 1.2300",
      "Fatigue levels: terrible night's sleep",
      "Emotions: probably biggest factor is non-trading stuff in my head",
      {
        "text": "1.2297",
        "y": 1.2297
      },
      "9",
      "12",
      "15",
      "18",
      "21",
      "24",
      "27",
      "30",
      "33",
      "36",
      "39",
      "42",
      "45",
      "48",
      "51",
      "54",
      "57",
      "60",
      "63",
      "66",
      "69",
      "72",
      "75",
      "78",
      "81",
      "84",
      "87",
      "90",
      "93",
      "96",
      "99",
      "102",
      "105",
      "108",
      "111",
      "114",
      "117",
      "120",
      "123",
      "126",
      "129",
      "132",
      "135",
      "138",
      "141",
      "144",
      "147",
      "150",
      "153",
      "156",
      "159",
      "162",
      "165",
      "168",
      "171",
      "174",
      "177",
      "180",
      "183",
      "186",
      "189",
      "192",
      "195",
      "198"
    ]
  }
}
